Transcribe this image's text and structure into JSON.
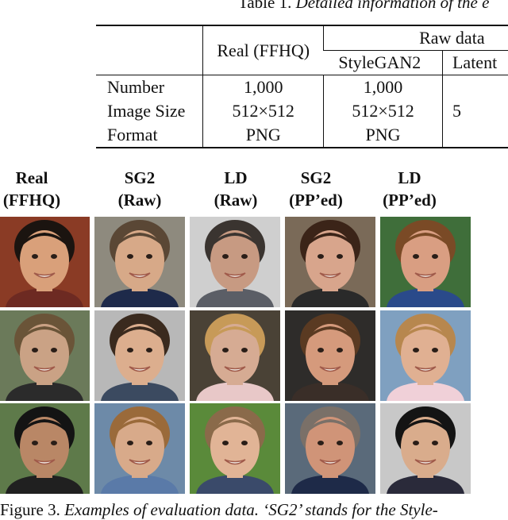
{
  "table_caption": {
    "label": "Table 1.",
    "text": "Detailed information of the e"
  },
  "table": {
    "header_real": "Real (FFHQ)",
    "header_raw": "Raw data",
    "sub_headers": [
      "StyleGAN2",
      "Latent"
    ],
    "rows": [
      {
        "label": "Number",
        "values": [
          "1,000",
          "1,000",
          ""
        ]
      },
      {
        "label": "Image Size",
        "values": [
          "512×512",
          "512×512",
          "5"
        ]
      },
      {
        "label": "Format",
        "values": [
          "PNG",
          "PNG",
          ""
        ]
      }
    ]
  },
  "columns": [
    {
      "line1": "Real",
      "line2": "(FFHQ)"
    },
    {
      "line1": "SG2",
      "line2": "(Raw)"
    },
    {
      "line1": "LD",
      "line2": "(Raw)"
    },
    {
      "line1": "SG2",
      "line2": "(PP’ed)"
    },
    {
      "line1": "LD",
      "line2": "(PP’ed)"
    }
  ],
  "figure_caption": {
    "label": "Figure 3.",
    "text": "Examples of evaluation data. ‘SG2’ stands for the Style-"
  },
  "colors": {
    "text": "#111111",
    "background": "#ffffff"
  }
}
